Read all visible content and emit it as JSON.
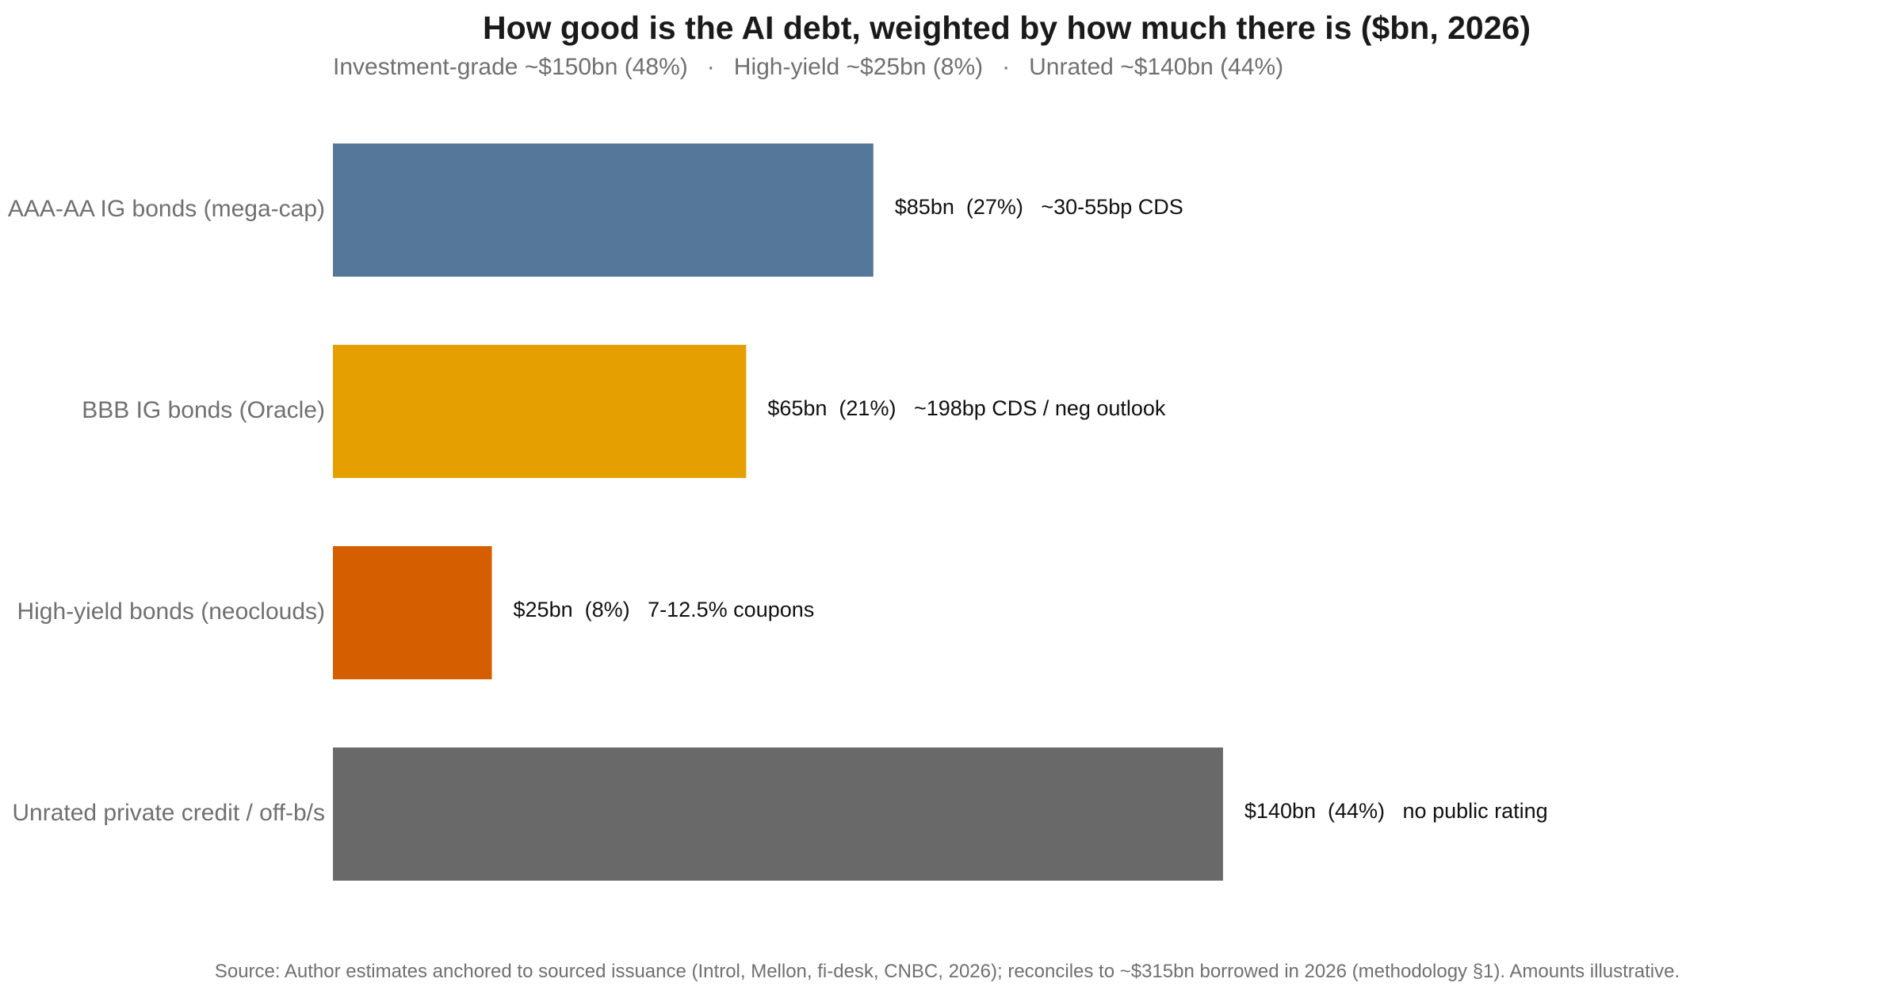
{
  "chart_data": {
    "type": "bar",
    "orientation": "horizontal",
    "title": "How good is the AI debt, weighted by how much there is ($bn, 2026)",
    "subtitle_parts": [
      "Investment-grade ~$150bn (48%)",
      "High-yield ~$25bn (8%)",
      "Unrated ~$140bn (44%)"
    ],
    "subtitle_separator": "·",
    "categories": [
      "AAA-AA IG bonds (mega-cap)",
      "BBB IG bonds (Oracle)",
      "High-yield bonds (neoclouds)",
      "Unrated private credit / off-b/s"
    ],
    "values": [
      85,
      65,
      25,
      140
    ],
    "unit": "$bn",
    "data_labels": [
      "$85bn  (27%)   ~30-55bp CDS",
      "$65bn  (21%)   ~198bp CDS / neg outlook",
      "$25bn  (8%)   7-12.5% coupons",
      "$140bn  (44%)   no public rating"
    ],
    "colors": [
      "#557799",
      "#e5a000",
      "#d55e00",
      "#696969"
    ],
    "xlim": [
      0,
      240
    ],
    "grid": false,
    "legend": "none",
    "source": "Source: Author estimates anchored to sourced issuance (Introl, Mellon, fi-desk, CNBC, 2026); reconciles to ~$315bn borrowed in 2026 (methodology §1). Amounts illustrative."
  }
}
